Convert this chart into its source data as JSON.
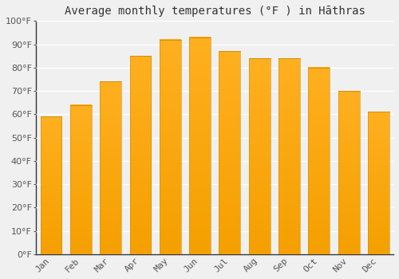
{
  "title": "Average monthly temperatures (°F ) in Hāthras",
  "months": [
    "Jan",
    "Feb",
    "Mar",
    "Apr",
    "May",
    "Jun",
    "Jul",
    "Aug",
    "Sep",
    "Oct",
    "Nov",
    "Dec"
  ],
  "values": [
    59,
    64,
    74,
    85,
    92,
    93,
    87,
    84,
    84,
    80,
    70,
    61
  ],
  "bar_color_top": "#FFA520",
  "bar_color_bottom": "#FFB938",
  "bar_edge_color": "#E09000",
  "ylim": [
    0,
    100
  ],
  "ytick_step": 10,
  "background_color": "#f0f0f0",
  "plot_bg_color": "#f0f0f0",
  "grid_color": "#ffffff",
  "title_fontsize": 10,
  "tick_fontsize": 8,
  "tick_color": "#555555",
  "spine_color": "#333333"
}
